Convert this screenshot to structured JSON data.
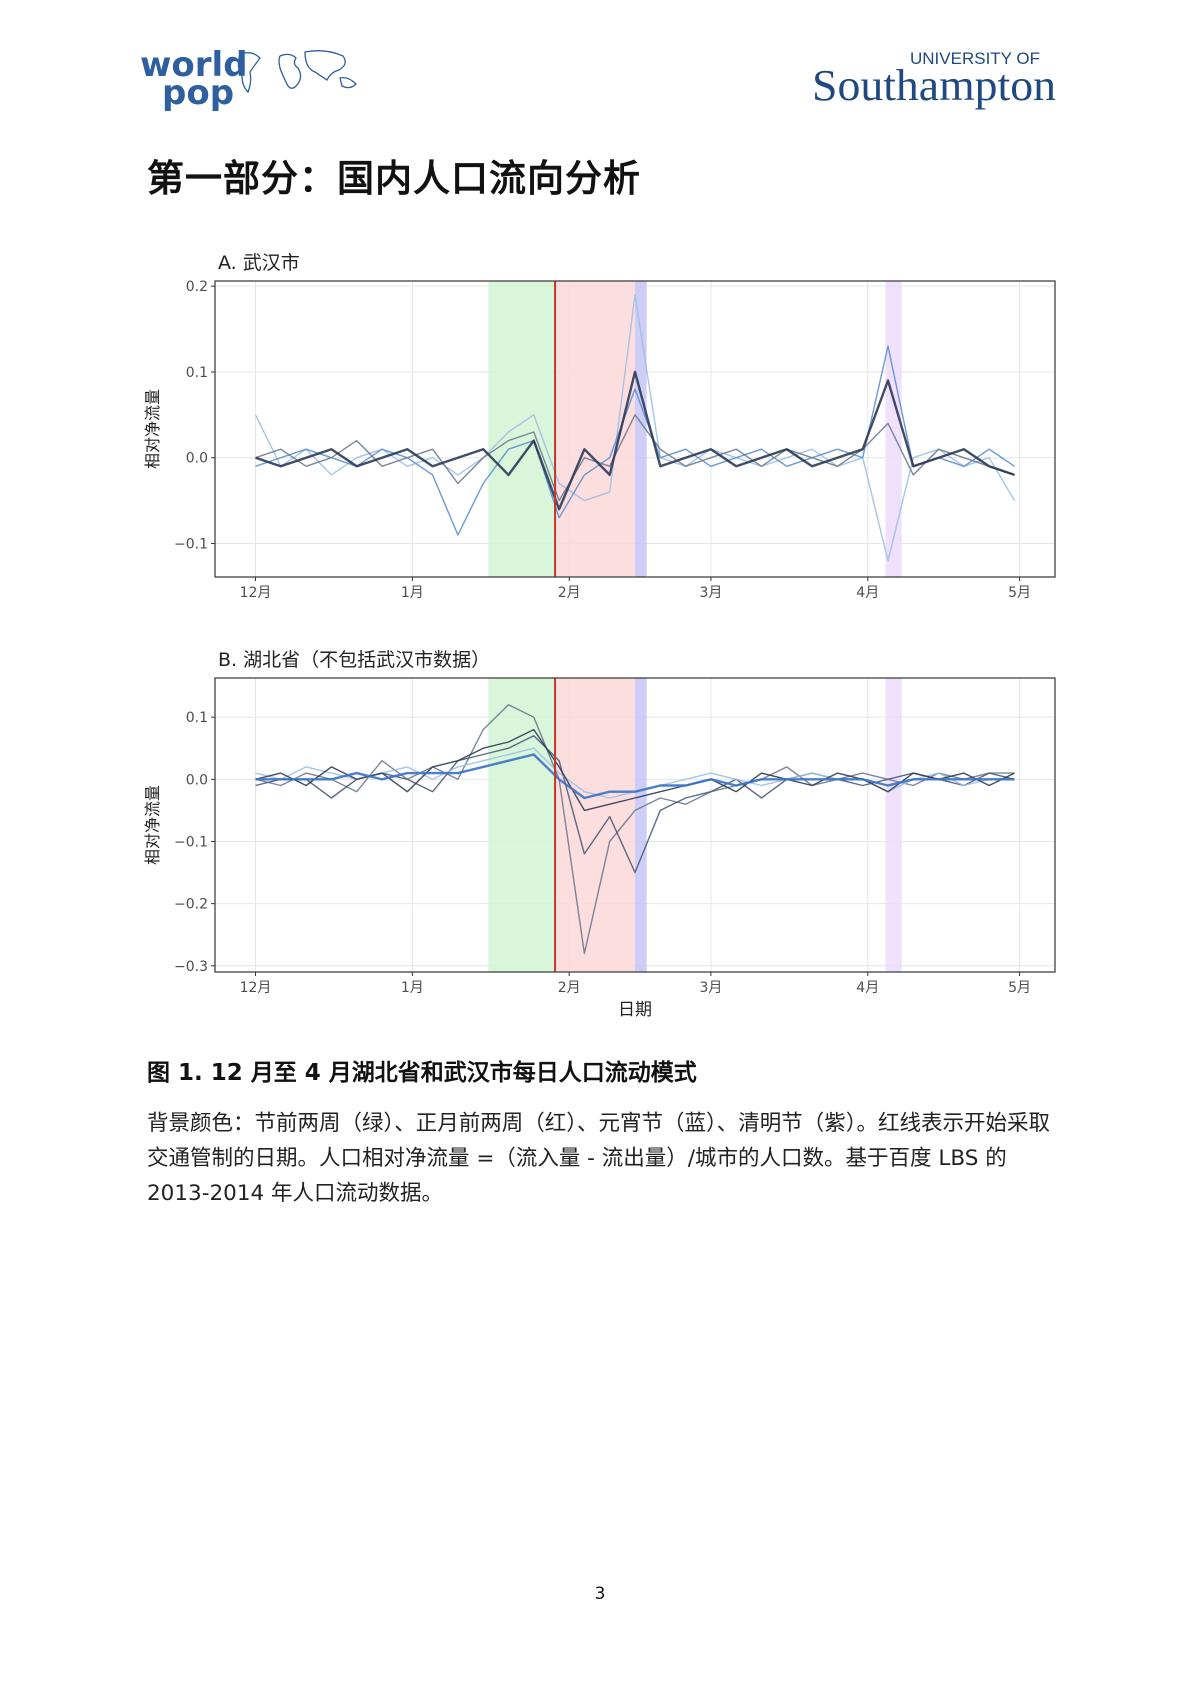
{
  "header": {
    "worldpop_line1": "world",
    "worldpop_line2": "pop",
    "university_of": "UNIVERSITY OF",
    "southampton": "Southampton"
  },
  "heading": "第一部分：国内人口流向分析",
  "chart_data": [
    {
      "type": "line",
      "title": "A. 武汉市",
      "y_label": "相对净流量",
      "xlim": [
        -8,
        158
      ],
      "ylim": [
        -0.139,
        0.206
      ],
      "xticks": [
        {
          "value": 0,
          "label": "12月"
        },
        {
          "value": 31,
          "label": "1月"
        },
        {
          "value": 62,
          "label": "2月"
        },
        {
          "value": 90,
          "label": "3月"
        },
        {
          "value": 121,
          "label": "4月"
        },
        {
          "value": 151,
          "label": "5月"
        }
      ],
      "yticks": [
        0.2,
        0.1,
        {
          "value": 0,
          "label": "0.0"
        },
        {
          "value": -0.1,
          "label": "−0.1"
        }
      ],
      "grid": true,
      "bands": [
        {
          "from": 46,
          "to": 59,
          "color": "#d3f5d3"
        },
        {
          "from": 59,
          "to": 75,
          "color": "#fbd8d8"
        },
        {
          "from": 75,
          "to": 77.3,
          "color": "#c4c4f7"
        },
        {
          "from": 124.5,
          "to": 127.7,
          "color": "#ecdafc"
        }
      ],
      "vline": {
        "x": 59.2,
        "color": "#c0392b"
      },
      "x": [
        0,
        5,
        10,
        15,
        20,
        25,
        30,
        35,
        40,
        45,
        50,
        55,
        60,
        65,
        70,
        75,
        80,
        85,
        90,
        95,
        100,
        105,
        110,
        115,
        120,
        125,
        130,
        135,
        140,
        145,
        150
      ],
      "series": [
        {
          "color": "#9dbfe6",
          "values": [
            0.05,
            -0.01,
            0.01,
            -0.02,
            0.0,
            0.01,
            -0.01,
            0.0,
            -0.02,
            0.0,
            0.03,
            0.05,
            -0.03,
            -0.05,
            -0.04,
            0.19,
            0.0,
            -0.01,
            0.01,
            0.0,
            -0.01,
            0.0,
            0.01,
            -0.01,
            0.0,
            -0.12,
            0.0,
            0.01,
            -0.01,
            0.0,
            -0.05
          ]
        },
        {
          "color": "#5b8fd0",
          "values": [
            -0.01,
            0.0,
            0.01,
            0.0,
            -0.01,
            0.01,
            0.0,
            -0.02,
            -0.09,
            -0.03,
            0.01,
            0.02,
            -0.07,
            -0.02,
            0.0,
            0.08,
            0.0,
            0.01,
            -0.01,
            0.0,
            0.01,
            -0.01,
            0.0,
            0.01,
            0.0,
            0.13,
            -0.01,
            0.0,
            -0.01,
            0.01,
            -0.01
          ]
        },
        {
          "color": "#6b7a8f",
          "values": [
            0.0,
            0.01,
            -0.01,
            0.0,
            0.02,
            -0.01,
            0.0,
            0.01,
            -0.03,
            0.0,
            0.02,
            0.03,
            -0.05,
            0.0,
            -0.01,
            0.05,
            0.01,
            -0.01,
            0.0,
            0.01,
            -0.01,
            0.01,
            0.0,
            -0.01,
            0.01,
            0.04,
            -0.02,
            0.01,
            0.0,
            -0.01,
            -0.02
          ]
        },
        {
          "color": "#2b3a55",
          "values": [
            0.0,
            -0.01,
            0.0,
            0.01,
            -0.01,
            0.0,
            0.01,
            -0.01,
            0.0,
            0.01,
            -0.02,
            0.02,
            -0.06,
            0.01,
            -0.02,
            0.1,
            -0.01,
            0.0,
            0.01,
            -0.01,
            0.0,
            0.01,
            -0.01,
            0.0,
            0.01,
            0.09,
            -0.01,
            0.0,
            0.01,
            -0.01,
            -0.02
          ]
        }
      ]
    },
    {
      "type": "line",
      "title": "B. 湖北省（不包括武汉市数据）",
      "y_label": "相对净流量",
      "x_label": "日期",
      "xlim": [
        -8,
        158
      ],
      "ylim": [
        -0.31,
        0.163
      ],
      "xticks": [
        {
          "value": 0,
          "label": "12月"
        },
        {
          "value": 31,
          "label": "1月"
        },
        {
          "value": 62,
          "label": "2月"
        },
        {
          "value": 90,
          "label": "3月"
        },
        {
          "value": 121,
          "label": "4月"
        },
        {
          "value": 151,
          "label": "5月"
        }
      ],
      "yticks": [
        0.1,
        {
          "value": 0,
          "label": "0.0"
        },
        {
          "value": -0.1,
          "label": "−0.1"
        },
        {
          "value": -0.2,
          "label": "−0.2"
        },
        {
          "value": -0.3,
          "label": "−0.3"
        }
      ],
      "grid": true,
      "bands": [
        {
          "from": 46,
          "to": 59,
          "color": "#d3f5d3"
        },
        {
          "from": 59,
          "to": 75,
          "color": "#fbd8d8"
        },
        {
          "from": 75,
          "to": 77.3,
          "color": "#c4c4f7"
        },
        {
          "from": 124.5,
          "to": 127.7,
          "color": "#ecdafc"
        }
      ],
      "vline": {
        "x": 59.2,
        "color": "#c0392b"
      },
      "x": [
        0,
        5,
        10,
        15,
        20,
        25,
        30,
        35,
        40,
        45,
        50,
        55,
        60,
        65,
        70,
        75,
        80,
        85,
        90,
        95,
        100,
        105,
        110,
        115,
        120,
        125,
        130,
        135,
        140,
        145,
        150
      ],
      "series": [
        {
          "color": "#6b7a8f",
          "values": [
            0.0,
            -0.01,
            0.01,
            0.0,
            -0.02,
            0.03,
            0.0,
            0.02,
            0.0,
            0.08,
            0.12,
            0.1,
            0.0,
            -0.28,
            -0.1,
            -0.05,
            -0.03,
            -0.04,
            -0.02,
            -0.01,
            0.0,
            0.02,
            -0.01,
            0.0,
            0.01,
            0.0,
            -0.01,
            0.01,
            0.0,
            0.01,
            0.01
          ]
        },
        {
          "color": "#4a5a78",
          "values": [
            -0.01,
            0.0,
            0.0,
            -0.03,
            0.0,
            0.01,
            0.0,
            -0.02,
            0.03,
            0.04,
            0.05,
            0.07,
            0.03,
            -0.12,
            -0.06,
            -0.15,
            -0.05,
            -0.03,
            -0.02,
            0.0,
            -0.03,
            0.0,
            0.01,
            0.0,
            -0.01,
            0.0,
            0.01,
            0.0,
            -0.01,
            0.01,
            0.0
          ]
        },
        {
          "color": "#9dbfe6",
          "values": [
            0.01,
            0.0,
            0.02,
            0.01,
            0.0,
            0.01,
            0.02,
            0.0,
            0.02,
            0.03,
            0.04,
            0.05,
            0.01,
            -0.02,
            -0.03,
            -0.02,
            -0.01,
            0.0,
            0.01,
            0.0,
            -0.01,
            0.0,
            0.01,
            0.0,
            0.0,
            -0.02,
            0.0,
            0.01,
            -0.01,
            0.0,
            0.0
          ]
        },
        {
          "color": "#2b3a55",
          "values": [
            0.0,
            0.01,
            -0.01,
            0.02,
            0.0,
            0.01,
            -0.02,
            0.02,
            0.03,
            0.05,
            0.06,
            0.08,
            0.02,
            -0.05,
            -0.04,
            -0.03,
            -0.02,
            -0.01,
            0.0,
            -0.02,
            0.01,
            0.0,
            -0.01,
            0.01,
            0.0,
            -0.02,
            0.01,
            0.0,
            0.01,
            -0.01,
            0.01
          ]
        },
        {
          "color": "#3a72c4",
          "values": [
            0.0,
            0.0,
            0.0,
            0.0,
            0.01,
            0.0,
            0.01,
            0.01,
            0.01,
            0.02,
            0.03,
            0.04,
            0.0,
            -0.03,
            -0.02,
            -0.02,
            -0.01,
            -0.01,
            0.0,
            -0.01,
            0.0,
            0.0,
            0.0,
            0.0,
            0.0,
            -0.01,
            0.0,
            0.0,
            0.0,
            0.0,
            0.0
          ]
        }
      ]
    }
  ],
  "figure_caption": {
    "title": "图 1. 12 月至 4 月湖北省和武汉市每日人口流动模式",
    "body": "背景颜色：节前两周（绿）、正月前两周（红）、元宵节（蓝）、清明节（紫）。红线表示开始采取交通管制的日期。人口相对净流量 =（流入量 - 流出量）/城市的人口数。基于百度 LBS 的 2013-2014 年人口流动数据。"
  },
  "page_number": "3"
}
